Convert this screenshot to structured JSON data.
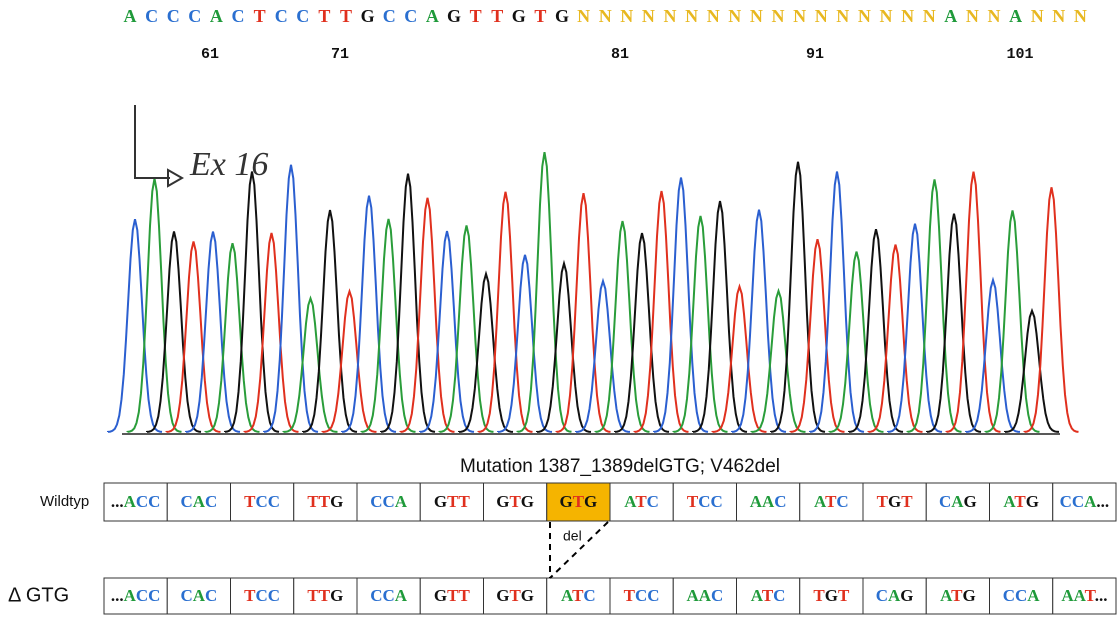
{
  "figure": {
    "trace_bases": [
      "A",
      "C",
      "C",
      "C",
      "A",
      "C",
      "T",
      "C",
      "C",
      "T",
      "T",
      "G",
      "C",
      "C",
      "A",
      "G",
      "T",
      "T",
      "G",
      "T",
      "G",
      "N",
      "N",
      "N",
      "N",
      "N",
      "N",
      "N",
      "N",
      "N",
      "N",
      "N",
      "N",
      "N",
      "N",
      "N",
      "N",
      "N",
      "A",
      "N",
      "N",
      "A",
      "N",
      "N",
      "N"
    ],
    "positions": [
      "61",
      "71",
      "81",
      "91",
      "101"
    ],
    "annotation": "Ex 16",
    "caption": "Mutation 1387_1389delGTG; V462del",
    "rows": [
      {
        "label": "Wildtyp",
        "codons": [
          "...ACC",
          "CAC",
          "TCC",
          "TTG",
          "CCA",
          "GTT",
          "GTG",
          "GTG",
          "ATC",
          "TCC",
          "AAC",
          "ATC",
          "TGT",
          "CAG",
          "ATG",
          "CCA..."
        ],
        "highlight_index": 7
      },
      {
        "label": "Δ GTG",
        "codons": [
          "...ACC",
          "CAC",
          "TCC",
          "TTG",
          "CCA",
          "GTT",
          "GTG",
          "ATC",
          "TCC",
          "AAC",
          "ATC",
          "TGT",
          "CAG",
          "ATG",
          "CCA",
          "AAT..."
        ]
      }
    ],
    "deletion_label": "del"
  }
}
